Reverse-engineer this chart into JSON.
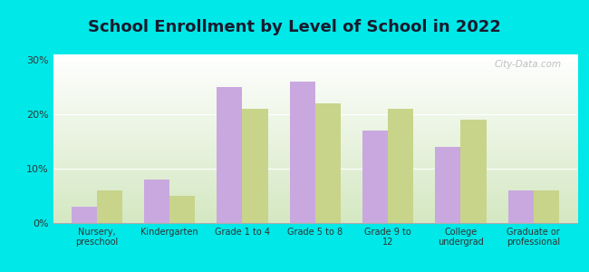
{
  "title": "School Enrollment by Level of School in 2022",
  "categories": [
    "Nursery,\npreschool",
    "Kindergarten",
    "Grade 1 to 4",
    "Grade 5 to 8",
    "Grade 9 to\n12",
    "College\nundergrad",
    "Graduate or\nprofessional"
  ],
  "zip_values": [
    3,
    8,
    25,
    26,
    17,
    14,
    6
  ],
  "wa_values": [
    6,
    5,
    21,
    22,
    21,
    19,
    6
  ],
  "zip_color": "#c9a8e0",
  "wa_color": "#c8d48a",
  "background_outer": "#00e8e8",
  "gradient_top": "#d4e8c2",
  "gradient_bottom": "#ffffff",
  "yticks": [
    0,
    10,
    20,
    30
  ],
  "ylim": [
    0,
    31
  ],
  "bar_width": 0.35,
  "title_fontsize": 13,
  "watermark": "City-Data.com"
}
